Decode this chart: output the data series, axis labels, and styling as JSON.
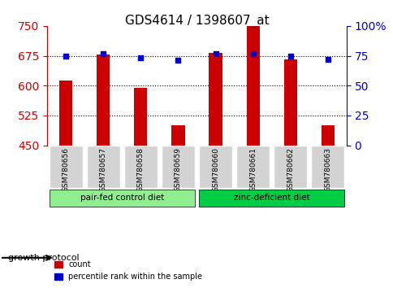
{
  "title": "GDS4614 / 1398607_at",
  "samples": [
    "GSM780656",
    "GSM780657",
    "GSM780658",
    "GSM780659",
    "GSM780660",
    "GSM780661",
    "GSM780662",
    "GSM780663"
  ],
  "counts": [
    613,
    678,
    595,
    500,
    683,
    750,
    665,
    500
  ],
  "percentiles": [
    75,
    77,
    73,
    71,
    77,
    77,
    75,
    72
  ],
  "groups": [
    {
      "label": "pair-fed control diet",
      "color": "#90EE90",
      "samples": [
        0,
        1,
        2,
        3
      ]
    },
    {
      "label": "zinc-deficient diet",
      "color": "#00CC44",
      "samples": [
        4,
        5,
        6,
        7
      ]
    }
  ],
  "ylim_left": [
    450,
    750
  ],
  "ylim_right": [
    0,
    100
  ],
  "yticks_left": [
    450,
    525,
    600,
    675,
    750
  ],
  "yticks_right": [
    0,
    25,
    50,
    75,
    100
  ],
  "ytick_labels_right": [
    "0",
    "25",
    "50",
    "75",
    "100%"
  ],
  "bar_color": "#CC0000",
  "dot_color": "#0000CC",
  "grid_color": "black",
  "bg_color": "#ffffff",
  "label_count": "count",
  "label_percentile": "percentile rank within the sample",
  "growth_protocol_label": "growth protocol",
  "group_label_color": "black",
  "left_axis_color": "#CC0000",
  "right_axis_color": "#0000CC"
}
